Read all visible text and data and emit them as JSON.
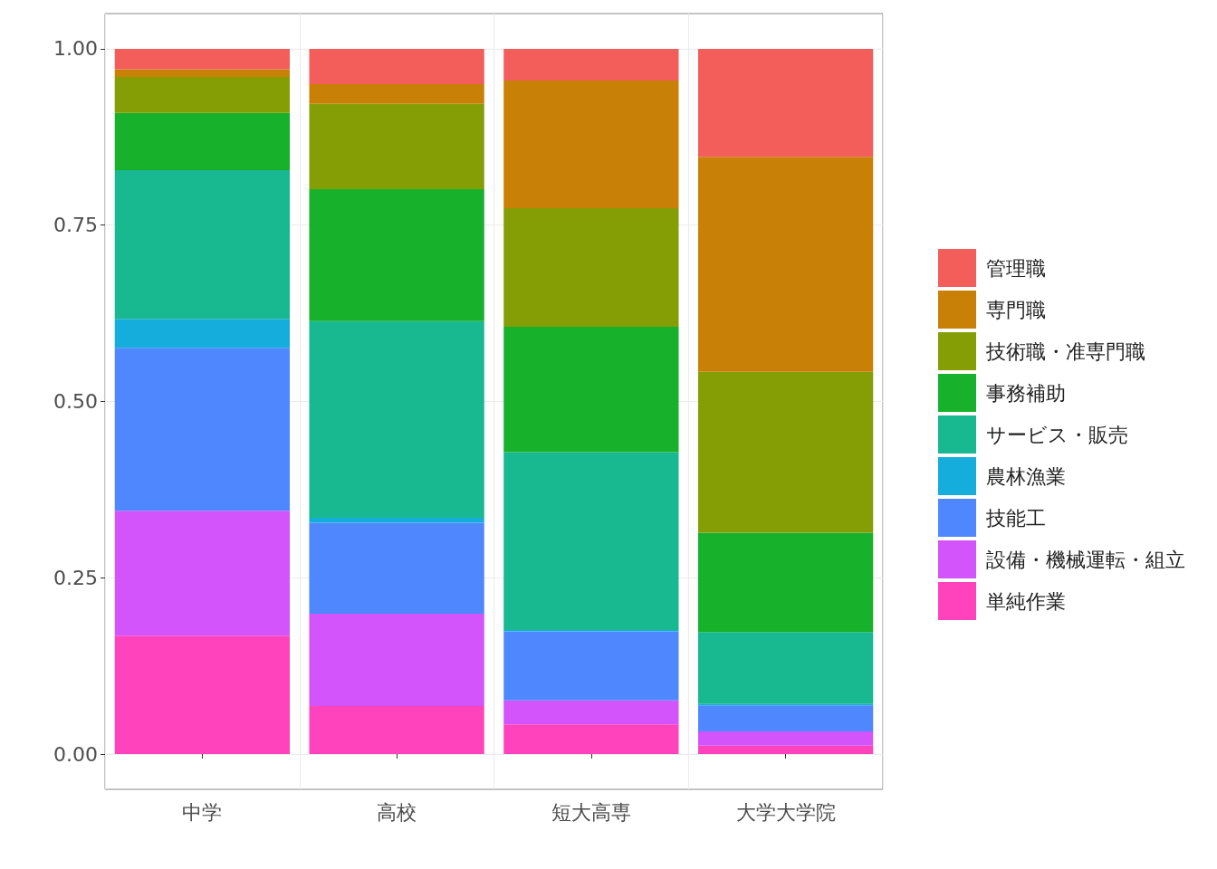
{
  "chart_data": {
    "type": "bar",
    "stacked": true,
    "categories": [
      "中学",
      "高校",
      "短大高専",
      "大学大学院"
    ],
    "series": [
      {
        "name": "単純作業",
        "color": "#ff43bc",
        "values": [
          0.168,
          0.068,
          0.042,
          0.012
        ]
      },
      {
        "name": "設備・機械運転・組立",
        "color": "#d354fa",
        "values": [
          0.177,
          0.131,
          0.034,
          0.02
        ]
      },
      {
        "name": "技能工",
        "color": "#4f87ff",
        "values": [
          0.231,
          0.129,
          0.098,
          0.037
        ]
      },
      {
        "name": "農林漁業",
        "color": "#15addb",
        "values": [
          0.041,
          0.007,
          0.002,
          0.002
        ]
      },
      {
        "name": "サービス・販売",
        "color": "#18b891",
        "values": [
          0.211,
          0.279,
          0.252,
          0.102
        ]
      },
      {
        "name": "事務補助",
        "color": "#17b12b",
        "values": [
          0.081,
          0.187,
          0.178,
          0.141
        ]
      },
      {
        "name": "技術職・准専門職",
        "color": "#869e06",
        "values": [
          0.051,
          0.121,
          0.168,
          0.228
        ]
      },
      {
        "name": "専門職",
        "color": "#c98006",
        "values": [
          0.011,
          0.028,
          0.181,
          0.305
        ]
      },
      {
        "name": "管理職",
        "color": "#f35e5a",
        "values": [
          0.029,
          0.05,
          0.045,
          0.153
        ]
      }
    ],
    "ylim": [
      -0.05,
      1.05
    ],
    "yticks": [
      {
        "value": 0,
        "label": "0.00"
      },
      {
        "value": 0.25,
        "label": "0.25"
      },
      {
        "value": 0.5,
        "label": "0.50"
      },
      {
        "value": 0.75,
        "label": "0.75"
      },
      {
        "value": 1,
        "label": "1.00"
      }
    ],
    "grid": true,
    "legend": "right"
  }
}
